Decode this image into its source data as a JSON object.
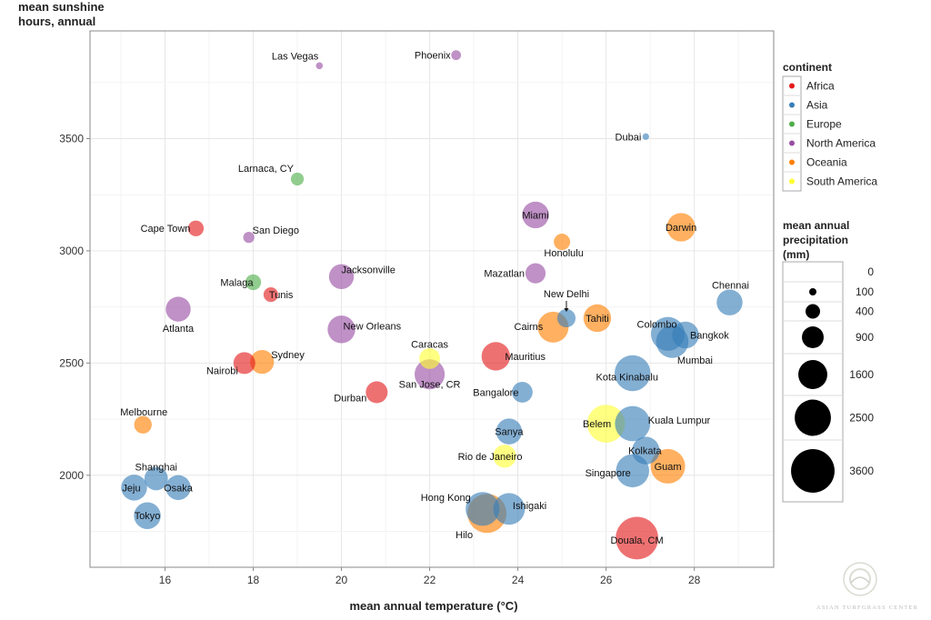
{
  "chart_data": {
    "type": "scatter",
    "subtype": "bubble",
    "title": "",
    "xlabel": "mean annual temperature (°C)",
    "ylabel": "mean sunshine hours, annual",
    "xlim": [
      14.3,
      29.8
    ],
    "ylim": [
      1590,
      3980
    ],
    "xticks": [
      16,
      18,
      20,
      22,
      24,
      26,
      28
    ],
    "yticks": [
      2000,
      2500,
      3000,
      3500
    ],
    "grid": true,
    "color_legend": {
      "title": "continent",
      "placement": "right",
      "entries": [
        {
          "name": "Africa",
          "color": "#e41a1c"
        },
        {
          "name": "Asia",
          "color": "#377eb8"
        },
        {
          "name": "Europe",
          "color": "#4daf4a"
        },
        {
          "name": "North America",
          "color": "#984ea3"
        },
        {
          "name": "Oceania",
          "color": "#ff7f00"
        },
        {
          "name": "South America",
          "color": "#ffff33"
        }
      ]
    },
    "size_legend": {
      "title_lines": [
        "mean annual",
        "precipitation",
        "(mm)"
      ],
      "placement": "right",
      "values": [
        0,
        100,
        400,
        900,
        1600,
        2500,
        3600
      ]
    },
    "points": [
      {
        "city": "Las Vegas",
        "continent": "North America",
        "temp": 19.5,
        "sun": 3825,
        "precip": 100
      },
      {
        "city": "Phoenix",
        "continent": "North America",
        "temp": 22.6,
        "sun": 3872,
        "precip": 200
      },
      {
        "city": "Dubai",
        "continent": "Asia",
        "temp": 26.9,
        "sun": 3509,
        "precip": 90
      },
      {
        "city": "Larnaca, CY",
        "continent": "Europe",
        "temp": 19.0,
        "sun": 3320,
        "precip": 350
      },
      {
        "city": "Miami",
        "continent": "North America",
        "temp": 24.4,
        "sun": 3160,
        "precip": 1500
      },
      {
        "city": "Cape Town",
        "continent": "Africa",
        "temp": 16.7,
        "sun": 3100,
        "precip": 520
      },
      {
        "city": "San Diego",
        "continent": "North America",
        "temp": 17.9,
        "sun": 3060,
        "precip": 260
      },
      {
        "city": "Darwin",
        "continent": "Oceania",
        "temp": 27.7,
        "sun": 3105,
        "precip": 1700
      },
      {
        "city": "Honolulu",
        "continent": "Oceania",
        "temp": 25.0,
        "sun": 3040,
        "precip": 560
      },
      {
        "city": "Jacksonville",
        "continent": "North America",
        "temp": 20.0,
        "sun": 2885,
        "precip": 1300
      },
      {
        "city": "Mazatlan",
        "continent": "North America",
        "temp": 24.4,
        "sun": 2900,
        "precip": 850
      },
      {
        "city": "Malaga",
        "continent": "Europe",
        "temp": 18.0,
        "sun": 2860,
        "precip": 520
      },
      {
        "city": "Tunis",
        "continent": "Africa",
        "temp": 18.4,
        "sun": 2805,
        "precip": 450
      },
      {
        "city": "Chennai",
        "continent": "Asia",
        "temp": 28.8,
        "sun": 2770,
        "precip": 1400
      },
      {
        "city": "Atlanta",
        "continent": "North America",
        "temp": 16.3,
        "sun": 2740,
        "precip": 1300
      },
      {
        "city": "New Delhi",
        "continent": "Asia",
        "temp": 25.1,
        "sun": 2700,
        "precip": 700
      },
      {
        "city": "Tahiti",
        "continent": "Oceania",
        "temp": 25.8,
        "sun": 2700,
        "precip": 1600
      },
      {
        "city": "Cairns",
        "continent": "Oceania",
        "temp": 24.8,
        "sun": 2660,
        "precip": 2000
      },
      {
        "city": "New Orleans",
        "continent": "North America",
        "temp": 20.0,
        "sun": 2650,
        "precip": 1600
      },
      {
        "city": "Colombo",
        "continent": "Asia",
        "temp": 27.4,
        "sun": 2630,
        "precip": 2400
      },
      {
        "city": "Bangkok",
        "continent": "Asia",
        "temp": 27.8,
        "sun": 2625,
        "precip": 1500
      },
      {
        "city": "Mumbai",
        "continent": "Asia",
        "temp": 27.5,
        "sun": 2595,
        "precip": 2200
      },
      {
        "city": "Mauritius",
        "continent": "Africa",
        "temp": 23.5,
        "sun": 2530,
        "precip": 1700
      },
      {
        "city": "Nairobi",
        "continent": "Africa",
        "temp": 17.8,
        "sun": 2500,
        "precip": 1000
      },
      {
        "city": "Sydney",
        "continent": "Oceania",
        "temp": 18.2,
        "sun": 2505,
        "precip": 1200
      },
      {
        "city": "Caracas",
        "continent": "South America",
        "temp": 22.0,
        "sun": 2520,
        "precip": 900
      },
      {
        "city": "San Jose, CR",
        "continent": "North America",
        "temp": 22.0,
        "sun": 2450,
        "precip": 1900
      },
      {
        "city": "Kota Kinabalu",
        "continent": "Asia",
        "temp": 26.6,
        "sun": 2455,
        "precip": 2700
      },
      {
        "city": "Durban",
        "continent": "Africa",
        "temp": 20.8,
        "sun": 2370,
        "precip": 1000
      },
      {
        "city": "Bangalore",
        "continent": "Asia",
        "temp": 24.1,
        "sun": 2370,
        "precip": 900
      },
      {
        "city": "Melbourne",
        "continent": "Oceania",
        "temp": 15.5,
        "sun": 2225,
        "precip": 650
      },
      {
        "city": "Belem",
        "continent": "South America",
        "temp": 26.0,
        "sun": 2230,
        "precip": 3000
      },
      {
        "city": "Kuala Lumpur",
        "continent": "Asia",
        "temp": 26.6,
        "sun": 2230,
        "precip": 2600
      },
      {
        "city": "Sanya",
        "continent": "Asia",
        "temp": 23.8,
        "sun": 2195,
        "precip": 1400
      },
      {
        "city": "Kolkata",
        "continent": "Asia",
        "temp": 26.9,
        "sun": 2110,
        "precip": 1600
      },
      {
        "city": "Rio de Janeiro",
        "continent": "South America",
        "temp": 23.7,
        "sun": 2085,
        "precip": 1100
      },
      {
        "city": "Guam",
        "continent": "Oceania",
        "temp": 27.4,
        "sun": 2040,
        "precip": 2500
      },
      {
        "city": "Singapore",
        "continent": "Asia",
        "temp": 26.6,
        "sun": 2020,
        "precip": 2300
      },
      {
        "city": "Shanghai",
        "continent": "Asia",
        "temp": 15.8,
        "sun": 1985,
        "precip": 1150
      },
      {
        "city": "Osaka",
        "continent": "Asia",
        "temp": 16.3,
        "sun": 1945,
        "precip": 1300
      },
      {
        "city": "Jeju",
        "continent": "Asia",
        "temp": 15.3,
        "sun": 1945,
        "precip": 1400
      },
      {
        "city": "Tokyo",
        "continent": "Asia",
        "temp": 15.6,
        "sun": 1820,
        "precip": 1500
      },
      {
        "city": "Hong Kong",
        "continent": "Asia",
        "temp": 23.2,
        "sun": 1850,
        "precip": 2400
      },
      {
        "city": "Ishigaki",
        "continent": "Asia",
        "temp": 23.8,
        "sun": 1850,
        "precip": 2100
      },
      {
        "city": "Hilo",
        "continent": "Oceania",
        "temp": 23.3,
        "sun": 1830,
        "precip": 3200
      },
      {
        "city": "Douala, CM",
        "continent": "Africa",
        "temp": 26.7,
        "sun": 1720,
        "precip": 3800
      }
    ]
  },
  "watermark": {
    "text": "ASIAN TURFGRASS CENTER"
  }
}
